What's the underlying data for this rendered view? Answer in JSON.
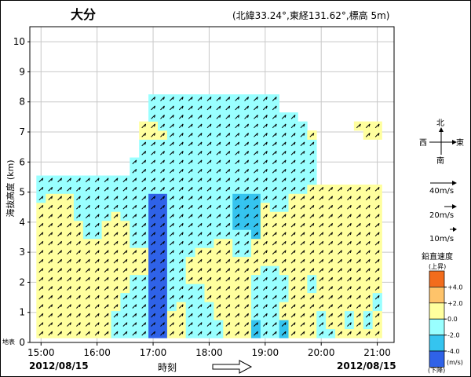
{
  "chart_data": {
    "type": "heatmap",
    "title": "大分",
    "subtitle": "(北緯33.24°,東経131.62°,標高 5m)",
    "ylabel": "海抜高度 (km)",
    "xlabel": "時刻",
    "ground_label": "地表",
    "date_left": "2012/08/15",
    "date_right": "2012/08/15",
    "x_ticks": [
      "15:00",
      "16:00",
      "17:00",
      "18:00",
      "19:00",
      "20:00",
      "21:00"
    ],
    "y_ticks": [
      "0",
      "1",
      "2",
      "3",
      "4",
      "5",
      "6",
      "7",
      "8",
      "9",
      "10"
    ],
    "ylim": [
      0,
      10.5
    ],
    "x_range_hours": [
      14.8,
      21.3
    ],
    "grid": true,
    "compass": {
      "north": "北",
      "south": "南",
      "east": "東",
      "west": "西"
    },
    "wind_scale": [
      "40m/s",
      "20m/s",
      "10m/s"
    ],
    "vertical_speed_legend": {
      "title": "鉛直速度",
      "top_note": "(上昇)",
      "bottom_note": "(下降)",
      "unit": "(m/s)",
      "colors": [
        "#f26c1c",
        "#fec36a",
        "#ffff9e",
        "#99ffff",
        "#35c4ef",
        "#2f62e8"
      ],
      "labels": [
        "+4.0",
        "+2.0",
        "0.0",
        "-2.0",
        "-4.0"
      ]
    },
    "color_classes": {
      "Y": "#ffff9e",
      "C": "#99ffff",
      "M": "#35c4ef",
      "B": "#2f62e8",
      "L": "#fec36a"
    },
    "levels_km": [
      0.3,
      0.6,
      0.9,
      1.2,
      1.5,
      1.8,
      2.1,
      2.4,
      2.7,
      3.0,
      3.3,
      3.6,
      3.9,
      4.2,
      4.5,
      4.8,
      5.1,
      5.4,
      5.7,
      6.0,
      6.3,
      6.6,
      6.9,
      7.2,
      7.5,
      7.8,
      8.1
    ],
    "times": [
      "15:00",
      "15:10",
      "15:20",
      "15:30",
      "15:40",
      "15:50",
      "16:00",
      "16:10",
      "16:20",
      "16:30",
      "16:40",
      "16:50",
      "17:00",
      "17:10",
      "17:20",
      "17:30",
      "17:40",
      "17:50",
      "18:00",
      "18:10",
      "18:20",
      "18:30",
      "18:40",
      "18:50",
      "19:00",
      "19:10",
      "19:20",
      "19:30",
      "19:40",
      "19:50",
      "20:00",
      "20:10",
      "20:20",
      "20:30",
      "20:40",
      "20:50",
      "21:00"
    ],
    "rows": [
      "YYYYYYYYCCCCBBYYCCCCYYYMCCMYYYCCYYYYY",
      "YYYYYYYYCCCCBBYYCCCCYYYMCCMYYYCYYCYCY",
      "YYYYYYYYCCCCBBYYCCCYYYYCCCYYYYCYYCYCY",
      "YYYYYYYYYCCCBBCYCCCYYYYCCCYYYYYYYYYYC",
      "YYYYYYYYYCCCBBCCCCYYYYYCCCCYYYYYYYYYC",
      "YYYYYYYYYYCCBBCCCCYYYYYCCCCYYCYYYYYYY",
      "YYYYYYYYYYCCBBCCYYYYYYYCCCCYYCYYYYYYY",
      "YYYYYYYYYYYYBBCCYYYYYYYYCCYYYYYYYYYYY",
      "YYYYYYYYYYYYBBCCYYYYYYYYYYYYYYYYYYYYY",
      "YYYYYYYYYYYYBBCCCYYYYCCYYYYYYYYYYYYYY",
      "YYYYYYYYYYCCBBCCCCCYYCCYYYYYYYYYYYYYY",
      "YYYYYCCYYYCCBBCCCCCCCCCMYYYYYYYYYYYYY",
      "YYYYYCCYYYCCBBCCCCCCCMMMYYYYYYYYYYYYY",
      "YYYYCCCCYCCCBBCCCCCCCMMMYYYYYYYYYYYYY",
      "YYYYCCCCCCCCBBCCCCCCCMMMYCCYYYYYYYYYY",
      "CYYYCCCCCCCCBBCCCCCCCMMMCCCYYYYYYYYYY",
      "CCCCCCCCCCCCCCCCCCCCCCCCCCCCCYYYYYYYY",
      "CCCCCCCCCCCCCCCCCCCCCCCCCCCCCC.......",
      "..........CCCCCCCCCCCCCCCCCCCC.......",
      "..........CCCCCCCCCCCCCCCCCCCC.......",
      "...........CCCCCCCCCCCCCCCCCCC.......",
      "...........CCCCCCCCCCCCCCCCCCC.......",
      "...........YYYCCCCCCCCCCCCCCCY.....YY",
      "...........YYCCCCCCCCCCCCCCCC.....YYY",
      "............CCCCCCCCCCCCCCCC.........",
      "............CCCCCCCCCCCCCC...........",
      "............CCCCCCCCCCCCCC..........."
    ],
    "wind_direction_deg": 225,
    "wind_speed_ms": 20
  }
}
